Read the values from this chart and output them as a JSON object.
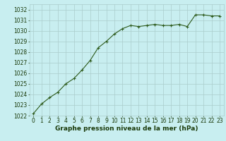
{
  "x": [
    0,
    1,
    2,
    3,
    4,
    5,
    6,
    7,
    8,
    9,
    10,
    11,
    12,
    13,
    14,
    15,
    16,
    17,
    18,
    19,
    20,
    21,
    22,
    23
  ],
  "y": [
    1022.2,
    1023.1,
    1023.7,
    1024.2,
    1025.0,
    1025.5,
    1026.3,
    1027.2,
    1028.4,
    1029.0,
    1029.7,
    1030.2,
    1030.5,
    1030.4,
    1030.5,
    1030.6,
    1030.5,
    1030.5,
    1030.6,
    1030.4,
    1031.5,
    1031.5,
    1031.4,
    1031.4
  ],
  "ylim": [
    1022,
    1032.5
  ],
  "xlim": [
    -0.5,
    23.5
  ],
  "yticks": [
    1022,
    1023,
    1024,
    1025,
    1026,
    1027,
    1028,
    1029,
    1030,
    1031,
    1032
  ],
  "xticks": [
    0,
    1,
    2,
    3,
    4,
    5,
    6,
    7,
    8,
    9,
    10,
    11,
    12,
    13,
    14,
    15,
    16,
    17,
    18,
    19,
    20,
    21,
    22,
    23
  ],
  "line_color": "#2d5a1b",
  "marker_color": "#2d5a1b",
  "bg_color": "#c8eef0",
  "grid_color": "#aacccc",
  "xlabel": "Graphe pression niveau de la mer (hPa)",
  "xlabel_color": "#1a3a0a",
  "tick_color": "#1a3a0a",
  "label_fontsize": 6.5,
  "tick_fontsize": 5.5
}
